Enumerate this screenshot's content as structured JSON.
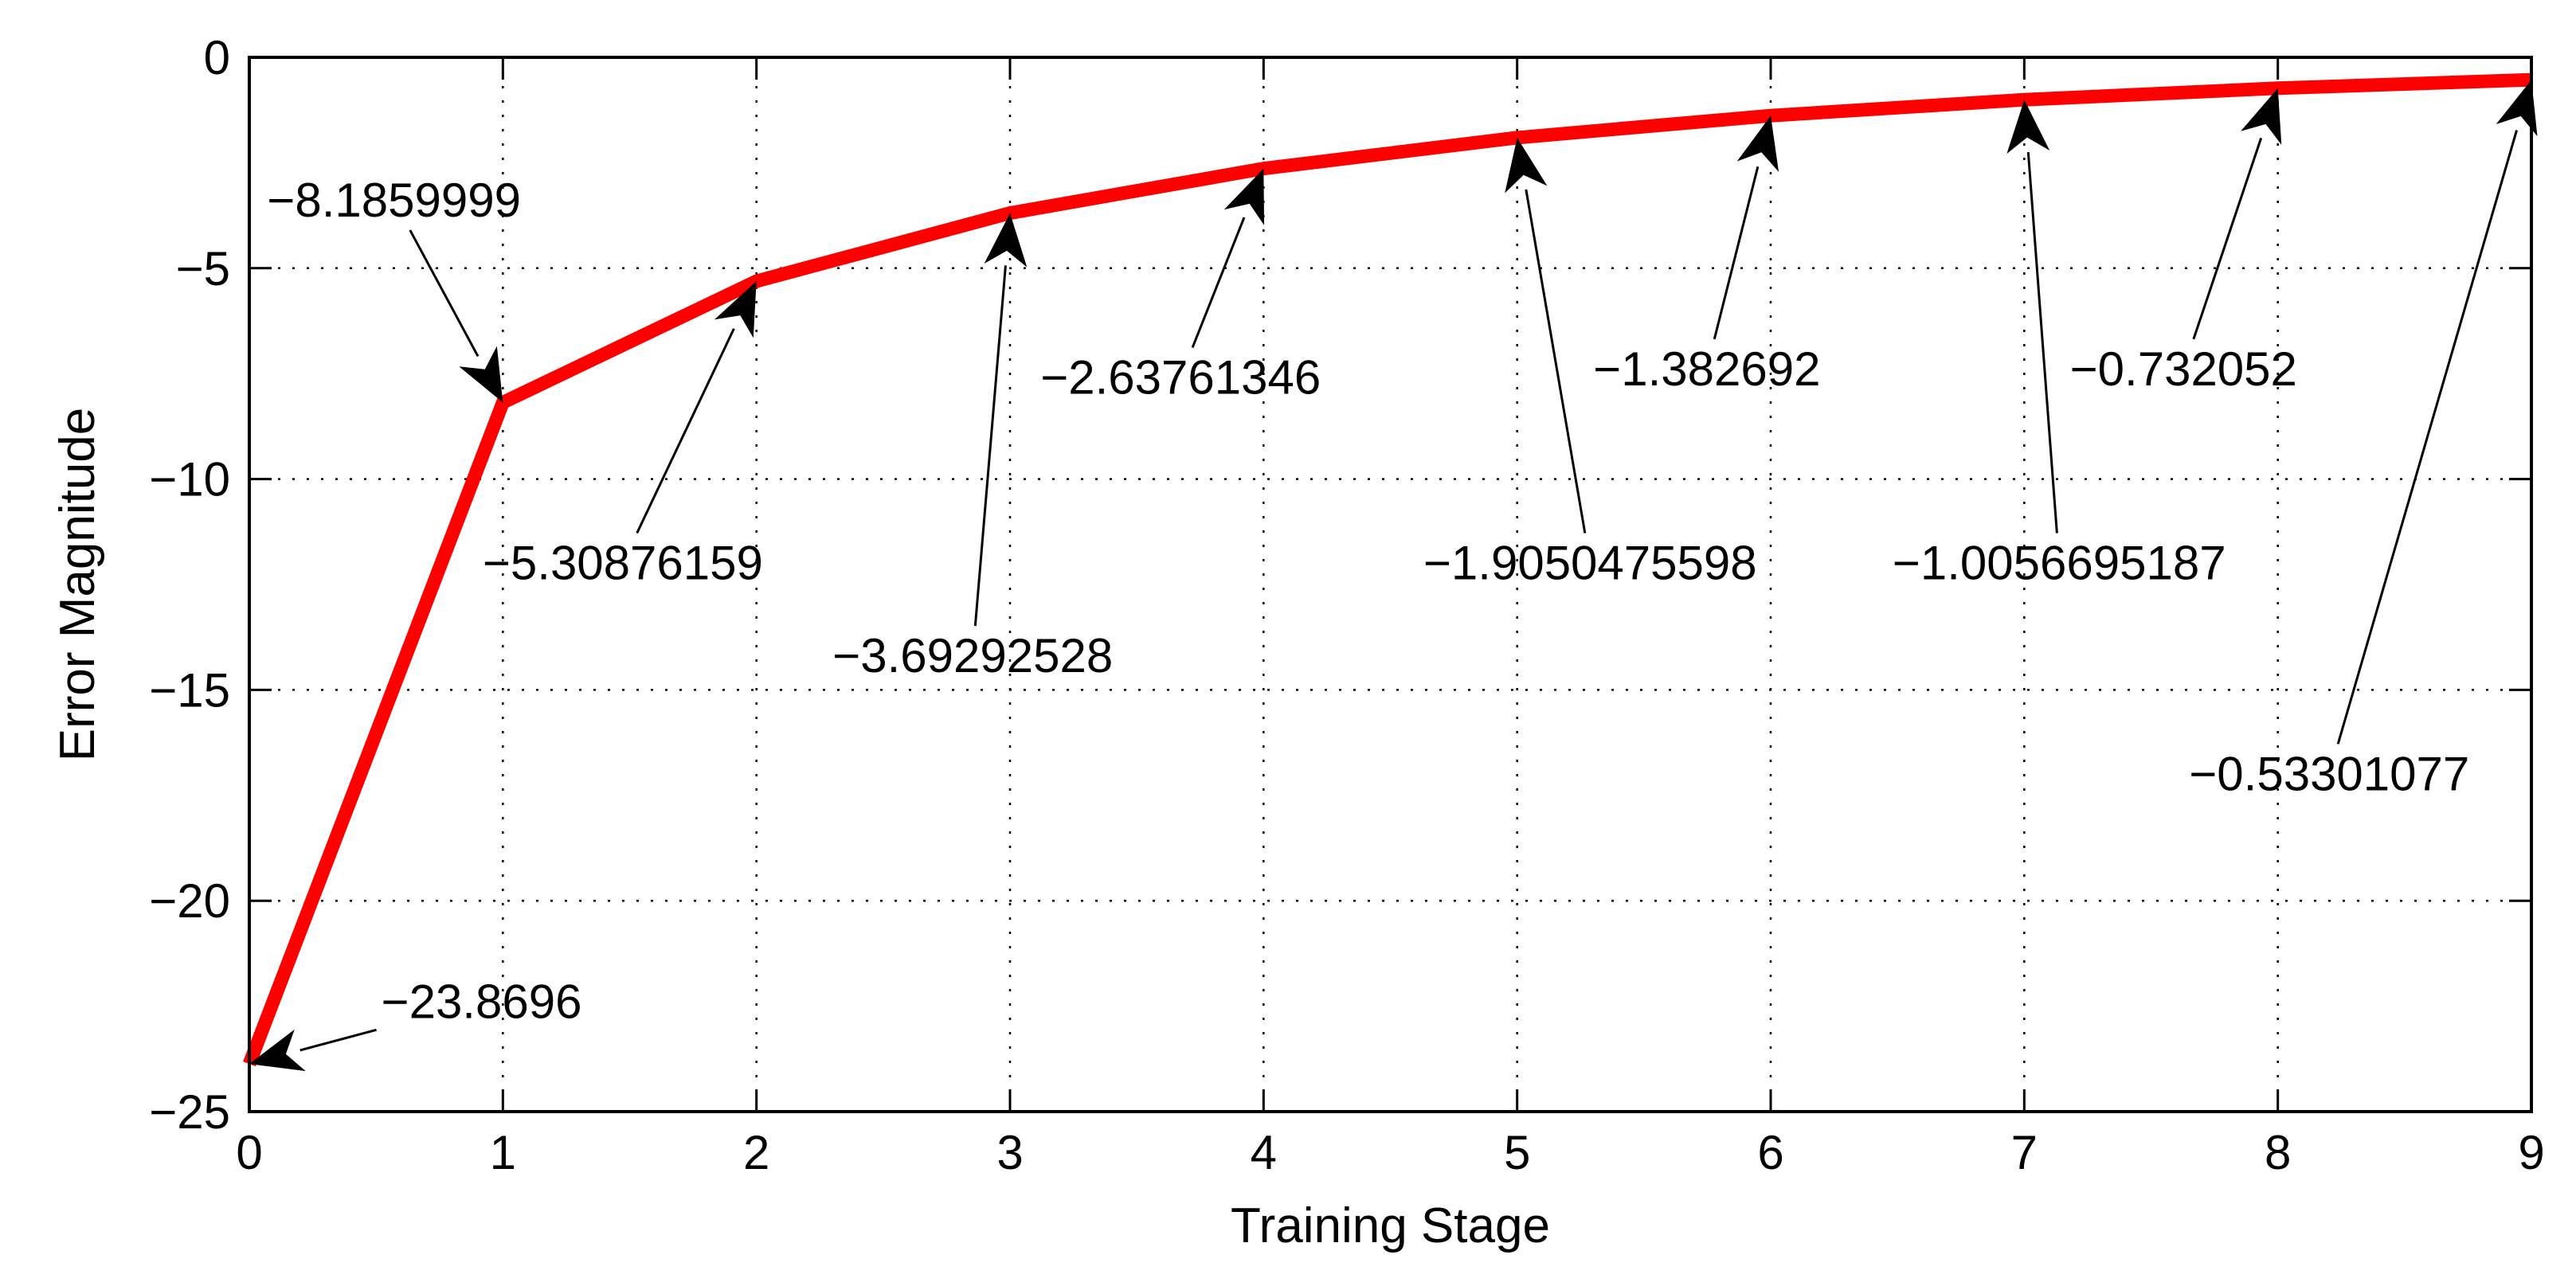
{
  "chart_data": {
    "type": "line",
    "xlabel": "Training Stage",
    "ylabel": "Error Magnitude",
    "xlim": [
      0,
      9
    ],
    "ylim": [
      -25,
      0
    ],
    "x_ticks": [
      "0",
      "1",
      "2",
      "3",
      "4",
      "5",
      "6",
      "7",
      "8",
      "9"
    ],
    "y_ticks": [
      "0",
      "−5",
      "−10",
      "−15",
      "−20",
      "−25"
    ],
    "grid": true,
    "line_color": "#ff0000",
    "x": [
      0,
      1,
      2,
      3,
      4,
      5,
      6,
      7,
      8,
      9
    ],
    "y": [
      -23.8696,
      -8.1859999,
      -5.30876159,
      -3.69292528,
      -2.63761346,
      -1.9050475598,
      -1.382692,
      -1.0056695187,
      -0.732052,
      -0.53301077
    ],
    "annotations": [
      {
        "x": 0,
        "y": -23.8696,
        "text": "−23.8696",
        "text_x": 0.52,
        "text_y": -22.4
      },
      {
        "x": 1,
        "y": -8.1859999,
        "text": "−8.1859999",
        "text_x": 0.07,
        "text_y": -3.4
      },
      {
        "x": 2,
        "y": -5.30876159,
        "text": "−5.30876159",
        "text_x": 0.92,
        "text_y": -12.0
      },
      {
        "x": 3,
        "y": -3.69292528,
        "text": "−3.69292528",
        "text_x": 2.3,
        "text_y": -14.2
      },
      {
        "x": 4,
        "y": -2.63761346,
        "text": "−2.63761346",
        "text_x": 3.12,
        "text_y": -7.6
      },
      {
        "x": 5,
        "y": -1.9050475598,
        "text": "−1.9050475598",
        "text_x": 4.63,
        "text_y": -12.0
      },
      {
        "x": 6,
        "y": -1.382692,
        "text": "−1.382692",
        "text_x": 5.3,
        "text_y": -7.4
      },
      {
        "x": 7,
        "y": -1.0056695187,
        "text": "−1.0056695187",
        "text_x": 6.48,
        "text_y": -12.0
      },
      {
        "x": 8,
        "y": -0.732052,
        "text": "−0.732052",
        "text_x": 7.18,
        "text_y": -7.4
      },
      {
        "x": 9,
        "y": -0.53301077,
        "text": "−0.53301077",
        "text_x": 7.65,
        "text_y": -17.0
      }
    ]
  }
}
